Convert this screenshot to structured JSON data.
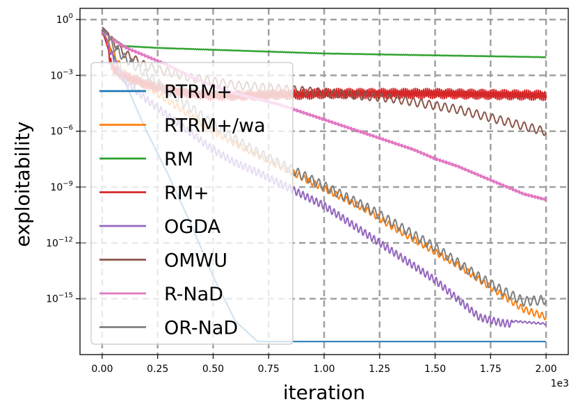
{
  "chart_data": {
    "type": "line",
    "xlabel": "iteration",
    "ylabel": "exploitability",
    "x_offset_label": "1e3",
    "xlim": [
      -0.1,
      2.1
    ],
    "ylim_exponent": [
      -18.0,
      0.6
    ],
    "yscale": "log",
    "grid": true,
    "legend_position": "left",
    "x_ticks": [
      {
        "v": 0.0,
        "label": "0.00"
      },
      {
        "v": 0.25,
        "label": "0.25"
      },
      {
        "v": 0.5,
        "label": "0.50"
      },
      {
        "v": 0.75,
        "label": "0.75"
      },
      {
        "v": 1.0,
        "label": "1.00"
      },
      {
        "v": 1.25,
        "label": "1.25"
      },
      {
        "v": 1.5,
        "label": "1.50"
      },
      {
        "v": 1.75,
        "label": "1.75"
      },
      {
        "v": 2.0,
        "label": "2.00"
      }
    ],
    "y_ticks": [
      {
        "exp": 0,
        "base": "10",
        "sup": "0"
      },
      {
        "exp": -3,
        "base": "10",
        "sup": "−3"
      },
      {
        "exp": -6,
        "base": "10",
        "sup": "−6"
      },
      {
        "exp": -9,
        "base": "10",
        "sup": "−9"
      },
      {
        "exp": -12,
        "base": "10",
        "sup": "−12"
      },
      {
        "exp": -15,
        "base": "10",
        "sup": "−15"
      }
    ],
    "series": [
      {
        "name": "RTRM+",
        "color": "#1f77b4",
        "x": [
          0.0,
          0.05,
          0.1,
          0.2,
          0.3,
          0.4,
          0.5,
          0.6,
          0.7,
          0.75,
          1.0,
          1.5,
          2.0
        ],
        "log10_y": [
          -0.5,
          -1.9,
          -3.3,
          -6.0,
          -8.4,
          -11.0,
          -13.8,
          -16.2,
          -17.3,
          -17.3,
          -17.3,
          -17.3,
          -17.3
        ]
      },
      {
        "name": "RTRM+/wa",
        "color": "#ff7f0e",
        "x": [
          0.0,
          0.1,
          0.2,
          0.3,
          0.4,
          0.5,
          0.6,
          0.7,
          0.8,
          0.9,
          1.0,
          1.1,
          1.2,
          1.3,
          1.4,
          1.5,
          1.6,
          1.7,
          1.8,
          1.9,
          2.0
        ],
        "log10_y": [
          -0.6,
          -2.7,
          -3.4,
          -4.2,
          -5.0,
          -5.8,
          -6.5,
          -7.1,
          -7.7,
          -8.3,
          -8.9,
          -9.5,
          -10.1,
          -10.9,
          -11.6,
          -12.3,
          -13.0,
          -13.8,
          -14.6,
          -15.4,
          -15.8
        ]
      },
      {
        "name": "RM",
        "color": "#2ca02c",
        "x": [
          0.0,
          0.1,
          0.25,
          0.5,
          0.75,
          1.0,
          1.25,
          1.5,
          1.75,
          2.0
        ],
        "log10_y": [
          -0.6,
          -1.4,
          -1.5,
          -1.6,
          -1.7,
          -1.8,
          -1.85,
          -1.9,
          -1.95,
          -2.0
        ]
      },
      {
        "name": "RM+",
        "color": "#d62728",
        "x": [
          0.0,
          0.05,
          0.1,
          0.15,
          0.2,
          0.3,
          0.4,
          0.5,
          0.6,
          0.7,
          0.8,
          0.9,
          1.0,
          1.25,
          1.5,
          1.75,
          2.0
        ],
        "log10_y": [
          -0.6,
          -2.4,
          -2.8,
          -3.0,
          -3.2,
          -3.5,
          -3.7,
          -3.8,
          -3.8,
          -3.8,
          -3.75,
          -3.75,
          -3.7,
          -3.7,
          -3.7,
          -3.75,
          -3.8
        ]
      },
      {
        "name": "OGDA",
        "color": "#9467bd",
        "x": [
          0.0,
          0.1,
          0.2,
          0.3,
          0.4,
          0.5,
          0.6,
          0.7,
          0.8,
          0.9,
          1.0,
          1.1,
          1.2,
          1.3,
          1.4,
          1.5,
          1.6,
          1.7,
          1.8,
          1.9,
          2.0
        ],
        "log10_y": [
          -0.6,
          -3.1,
          -4.1,
          -5.0,
          -5.9,
          -6.8,
          -7.5,
          -8.0,
          -8.6,
          -9.2,
          -9.8,
          -10.6,
          -11.4,
          -12.2,
          -13.0,
          -13.8,
          -14.8,
          -15.8,
          -16.1,
          -16.2,
          -16.3
        ]
      },
      {
        "name": "OMWU",
        "color": "#8c564b",
        "x": [
          0.0,
          0.1,
          0.2,
          0.3,
          0.4,
          0.5,
          0.6,
          0.7,
          0.8,
          0.9,
          1.0,
          1.1,
          1.2,
          1.3,
          1.4,
          1.5,
          1.6,
          1.7,
          1.8,
          1.9,
          2.0
        ],
        "log10_y": [
          -0.4,
          -1.6,
          -2.3,
          -2.6,
          -2.9,
          -3.1,
          -3.3,
          -3.4,
          -3.5,
          -3.6,
          -3.7,
          -3.8,
          -3.9,
          -4.0,
          -4.2,
          -4.4,
          -4.6,
          -4.9,
          -5.2,
          -5.5,
          -5.8
        ]
      },
      {
        "name": "R-NaD",
        "color": "#e377c2",
        "x": [
          0.0,
          0.05,
          0.1,
          0.2,
          0.3,
          0.4,
          0.5,
          0.6,
          0.7,
          0.8,
          0.9,
          1.0,
          1.1,
          1.2,
          1.3,
          1.4,
          1.5,
          1.6,
          1.7,
          1.8,
          1.9,
          2.0
        ],
        "log10_y": [
          -0.7,
          -1.0,
          -1.4,
          -1.9,
          -2.4,
          -3.0,
          -3.5,
          -3.9,
          -4.2,
          -4.5,
          -4.9,
          -5.3,
          -5.7,
          -6.1,
          -6.5,
          -6.9,
          -7.4,
          -7.8,
          -8.3,
          -8.8,
          -9.3,
          -9.6
        ]
      },
      {
        "name": "OR-NaD",
        "color": "#7f7f7f",
        "x": [
          0.0,
          0.1,
          0.2,
          0.3,
          0.4,
          0.5,
          0.6,
          0.7,
          0.8,
          0.9,
          1.0,
          1.1,
          1.2,
          1.3,
          1.4,
          1.5,
          1.6,
          1.7,
          1.8,
          1.9,
          2.0
        ],
        "log10_y": [
          -0.5,
          -1.8,
          -2.7,
          -3.6,
          -4.5,
          -5.4,
          -6.2,
          -6.9,
          -7.5,
          -8.1,
          -8.7,
          -9.3,
          -9.9,
          -10.6,
          -11.3,
          -12.0,
          -12.8,
          -13.6,
          -14.3,
          -14.9,
          -14.8
        ]
      }
    ]
  }
}
